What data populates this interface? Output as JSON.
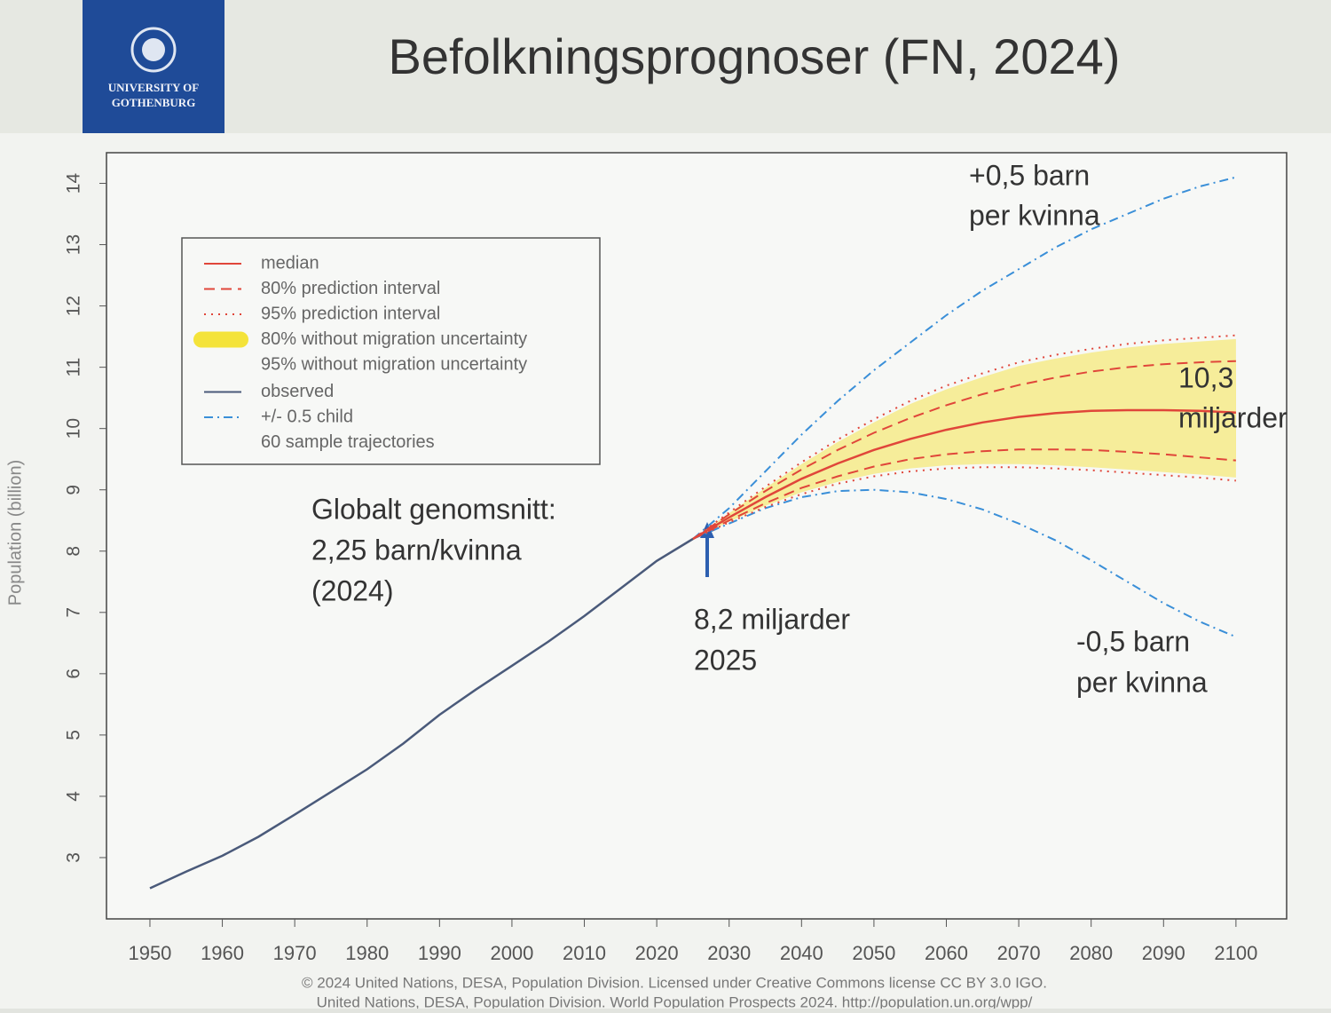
{
  "header": {
    "logo": "UNIVERSITY OF GOTHENBURG",
    "title": "Befolkningsprognoser (FN, 2024)"
  },
  "chart_data": {
    "type": "line",
    "y_label": "Population (billion)",
    "x": [
      1950,
      1955,
      1960,
      1965,
      1970,
      1975,
      1980,
      1985,
      1990,
      1995,
      2000,
      2005,
      2010,
      2015,
      2020,
      2025,
      2030,
      2035,
      2040,
      2045,
      2050,
      2055,
      2060,
      2065,
      2070,
      2075,
      2080,
      2085,
      2090,
      2095,
      2100
    ],
    "xlim": [
      1944,
      2107
    ],
    "xticks": [
      1950,
      1960,
      1970,
      1980,
      1990,
      2000,
      2010,
      2020,
      2030,
      2040,
      2050,
      2060,
      2070,
      2080,
      2090,
      2100
    ],
    "ylim": [
      2,
      14.5
    ],
    "yticks": [
      3,
      4,
      5,
      6,
      7,
      8,
      9,
      10,
      11,
      12,
      13,
      14
    ],
    "series": [
      {
        "name": "median",
        "color": "#e0463a",
        "style": "solid",
        "values": [
          null,
          null,
          null,
          null,
          null,
          null,
          null,
          null,
          null,
          null,
          null,
          null,
          null,
          null,
          null,
          8.2,
          8.55,
          8.88,
          9.18,
          9.43,
          9.65,
          9.83,
          9.98,
          10.1,
          10.19,
          10.25,
          10.29,
          10.3,
          10.3,
          10.29,
          10.26
        ]
      },
      {
        "name": "80% prediction interval",
        "color": "#e0463a",
        "style": "dashed",
        "lower": [
          null,
          null,
          null,
          null,
          null,
          null,
          null,
          null,
          null,
          null,
          null,
          null,
          null,
          null,
          null,
          8.2,
          8.5,
          8.78,
          9.03,
          9.22,
          9.38,
          9.5,
          9.58,
          9.63,
          9.66,
          9.66,
          9.65,
          9.62,
          9.58,
          9.53,
          9.48
        ],
        "upper": [
          null,
          null,
          null,
          null,
          null,
          null,
          null,
          null,
          null,
          null,
          null,
          null,
          null,
          null,
          null,
          8.2,
          8.6,
          8.98,
          9.33,
          9.65,
          9.93,
          10.17,
          10.38,
          10.56,
          10.71,
          10.83,
          10.93,
          11.0,
          11.05,
          11.08,
          11.1
        ]
      },
      {
        "name": "95% prediction interval",
        "color": "#e0463a",
        "style": "dotted",
        "lower": [
          null,
          null,
          null,
          null,
          null,
          null,
          null,
          null,
          null,
          null,
          null,
          null,
          null,
          null,
          null,
          8.2,
          8.47,
          8.72,
          8.93,
          9.1,
          9.22,
          9.3,
          9.35,
          9.37,
          9.37,
          9.35,
          9.32,
          9.28,
          9.24,
          9.2,
          9.15
        ],
        "upper": [
          null,
          null,
          null,
          null,
          null,
          null,
          null,
          null,
          null,
          null,
          null,
          null,
          null,
          null,
          null,
          8.2,
          8.63,
          9.05,
          9.45,
          9.82,
          10.15,
          10.45,
          10.7,
          10.9,
          11.08,
          11.2,
          11.3,
          11.38,
          11.44,
          11.48,
          11.52
        ]
      },
      {
        "name": "80% without migration uncertainty",
        "color": "#f4e33a",
        "style": "band",
        "lower": [
          null,
          null,
          null,
          null,
          null,
          null,
          null,
          null,
          null,
          null,
          null,
          null,
          null,
          null,
          null,
          8.2,
          8.51,
          8.8,
          9.05,
          9.25,
          9.41,
          9.53,
          9.61,
          9.66,
          9.69,
          9.69,
          9.68,
          9.65,
          9.61,
          9.56,
          9.52
        ],
        "upper": [
          null,
          null,
          null,
          null,
          null,
          null,
          null,
          null,
          null,
          null,
          null,
          null,
          null,
          null,
          null,
          8.2,
          8.59,
          8.96,
          9.31,
          9.62,
          9.9,
          10.13,
          10.34,
          10.52,
          10.67,
          10.79,
          10.88,
          10.95,
          11.0,
          11.03,
          11.06
        ]
      },
      {
        "name": "95% without migration uncertainty",
        "color": "#f6ed9a",
        "style": "band",
        "lower": [
          null,
          null,
          null,
          null,
          null,
          null,
          null,
          null,
          null,
          null,
          null,
          null,
          null,
          null,
          null,
          8.2,
          8.48,
          8.74,
          8.96,
          9.13,
          9.26,
          9.35,
          9.4,
          9.42,
          9.42,
          9.4,
          9.37,
          9.33,
          9.29,
          9.25,
          9.2
        ],
        "upper": [
          null,
          null,
          null,
          null,
          null,
          null,
          null,
          null,
          null,
          null,
          null,
          null,
          null,
          null,
          null,
          8.2,
          8.62,
          9.03,
          9.42,
          9.78,
          10.1,
          10.4,
          10.64,
          10.84,
          11.02,
          11.14,
          11.24,
          11.32,
          11.38,
          11.42,
          11.46
        ]
      },
      {
        "name": "observed",
        "color": "#4a5a7a",
        "style": "solid",
        "values": [
          2.5,
          2.77,
          3.03,
          3.34,
          3.7,
          4.07,
          4.44,
          4.86,
          5.33,
          5.74,
          6.13,
          6.52,
          6.94,
          7.39,
          7.84,
          8.2,
          null,
          null,
          null,
          null,
          null,
          null,
          null,
          null,
          null,
          null,
          null,
          null,
          null,
          null,
          null
        ]
      },
      {
        "name": "+/- 0.5 child",
        "color": "#3a8fd8",
        "style": "dashdot",
        "lower": [
          null,
          null,
          null,
          null,
          null,
          null,
          null,
          null,
          null,
          null,
          null,
          null,
          null,
          null,
          null,
          8.2,
          8.45,
          8.7,
          8.88,
          8.98,
          9.0,
          8.96,
          8.85,
          8.68,
          8.45,
          8.18,
          7.85,
          7.5,
          7.15,
          6.85,
          6.6
        ],
        "upper": [
          null,
          null,
          null,
          null,
          null,
          null,
          null,
          null,
          null,
          null,
          null,
          null,
          null,
          null,
          null,
          8.2,
          8.7,
          9.3,
          9.9,
          10.45,
          10.95,
          11.4,
          11.85,
          12.25,
          12.6,
          12.95,
          13.25,
          13.5,
          13.75,
          13.95,
          14.1
        ]
      },
      {
        "name": "60 sample trajectories",
        "color": "#9aa0a8",
        "style": "none"
      }
    ],
    "annotations": [
      "+0,5 barn",
      "per kvinna",
      "10,3",
      "miljarder",
      "Globalt genomsnitt:",
      "2,25 barn/kvinna",
      "(2024)",
      "8,2 miljarder",
      "2025",
      "-0,5 barn",
      "per kvinna"
    ],
    "source": [
      "© 2024 United Nations, DESA, Population Division. Licensed under Creative Commons license CC BY 3.0 IGO.",
      "United Nations, DESA, Population Division. World Population Prospects 2024. http://population.un.org/wpp/"
    ]
  }
}
